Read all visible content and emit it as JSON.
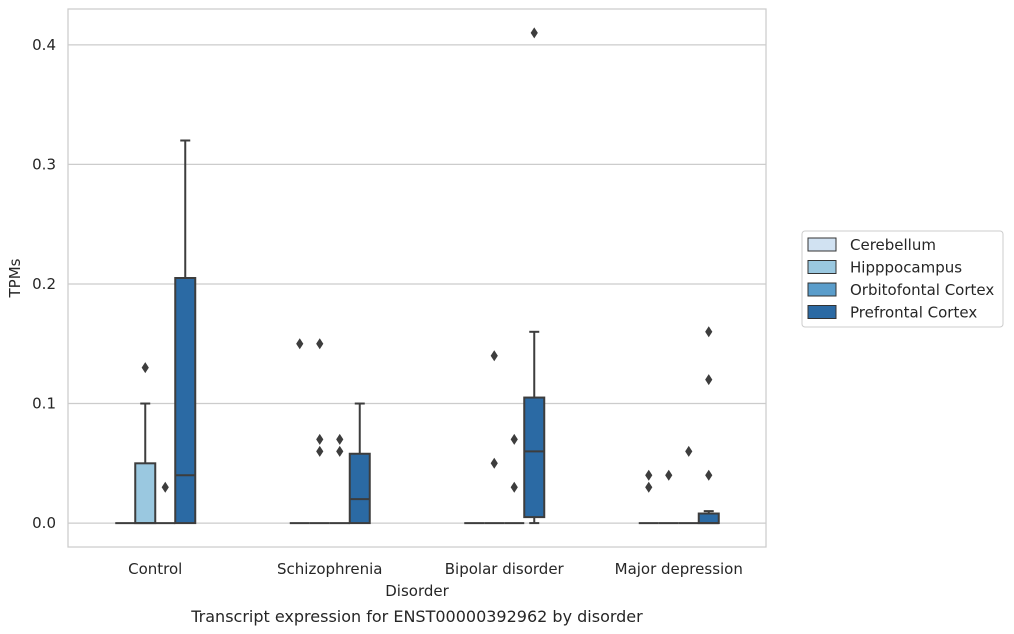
{
  "chart_data": {
    "type": "box",
    "caption": "Transcript expression for ENST00000392962 by disorder",
    "xlabel": "Disorder",
    "ylabel": "TPMs",
    "ylim": [
      -0.02,
      0.43
    ],
    "yticks": [
      0.0,
      0.1,
      0.2,
      0.3,
      0.4
    ],
    "ytick_labels": [
      "0.0",
      "0.1",
      "0.2",
      "0.3",
      "0.4"
    ],
    "grid": "horizontal",
    "legend_position": "right",
    "categories": [
      "Control",
      "Schizophrenia",
      "Bipolar disorder",
      "Major depression"
    ],
    "series": [
      {
        "name": "Cerebellum",
        "color": "#d1e2f2",
        "boxes": [
          {
            "q1": 0,
            "median": 0,
            "q3": 0,
            "whislo": 0,
            "whishi": 0,
            "fliers": []
          },
          {
            "q1": 0,
            "median": 0,
            "q3": 0,
            "whislo": 0,
            "whishi": 0,
            "fliers": [
              0.15
            ]
          },
          {
            "q1": 0,
            "median": 0,
            "q3": 0,
            "whislo": 0,
            "whishi": 0,
            "fliers": []
          },
          {
            "q1": 0,
            "median": 0,
            "q3": 0,
            "whislo": 0,
            "whishi": 0,
            "fliers": [
              0.03,
              0.04
            ]
          }
        ]
      },
      {
        "name": "Hipppocampus",
        "color": "#9ac8e0",
        "boxes": [
          {
            "q1": 0,
            "median": 0,
            "q3": 0.05,
            "whislo": 0,
            "whishi": 0.1,
            "fliers": [
              0.13
            ]
          },
          {
            "q1": 0,
            "median": 0,
            "q3": 0,
            "whislo": 0,
            "whishi": 0,
            "fliers": [
              0.06,
              0.07,
              0.15
            ]
          },
          {
            "q1": 0,
            "median": 0,
            "q3": 0,
            "whislo": 0,
            "whishi": 0,
            "fliers": [
              0.05,
              0.14
            ]
          },
          {
            "q1": 0,
            "median": 0,
            "q3": 0,
            "whislo": 0,
            "whishi": 0,
            "fliers": [
              0.04
            ]
          }
        ]
      },
      {
        "name": "Orbitofontal Cortex",
        "color": "#5a9dcb",
        "boxes": [
          {
            "q1": 0,
            "median": 0,
            "q3": 0,
            "whislo": 0,
            "whishi": 0,
            "fliers": [
              0.03
            ]
          },
          {
            "q1": 0,
            "median": 0,
            "q3": 0,
            "whislo": 0,
            "whishi": 0,
            "fliers": [
              0.06,
              0.07
            ]
          },
          {
            "q1": 0,
            "median": 0,
            "q3": 0,
            "whislo": 0,
            "whishi": 0,
            "fliers": [
              0.03,
              0.07
            ]
          },
          {
            "q1": 0,
            "median": 0,
            "q3": 0,
            "whislo": 0,
            "whishi": 0,
            "fliers": [
              0.06
            ]
          }
        ]
      },
      {
        "name": "Prefrontal Cortex",
        "color": "#2b6aa4",
        "boxes": [
          {
            "q1": 0,
            "median": 0.04,
            "q3": 0.205,
            "whislo": 0,
            "whishi": 0.32,
            "fliers": []
          },
          {
            "q1": 0,
            "median": 0.02,
            "q3": 0.058,
            "whislo": 0,
            "whishi": 0.1,
            "fliers": []
          },
          {
            "q1": 0.005,
            "median": 0.06,
            "q3": 0.105,
            "whislo": 0,
            "whishi": 0.16,
            "fliers": [
              0.41
            ]
          },
          {
            "q1": 0,
            "median": 0,
            "q3": 0.008,
            "whislo": 0,
            "whishi": 0.01,
            "fliers": [
              0.04,
              0.12,
              0.16
            ]
          }
        ]
      }
    ]
  }
}
